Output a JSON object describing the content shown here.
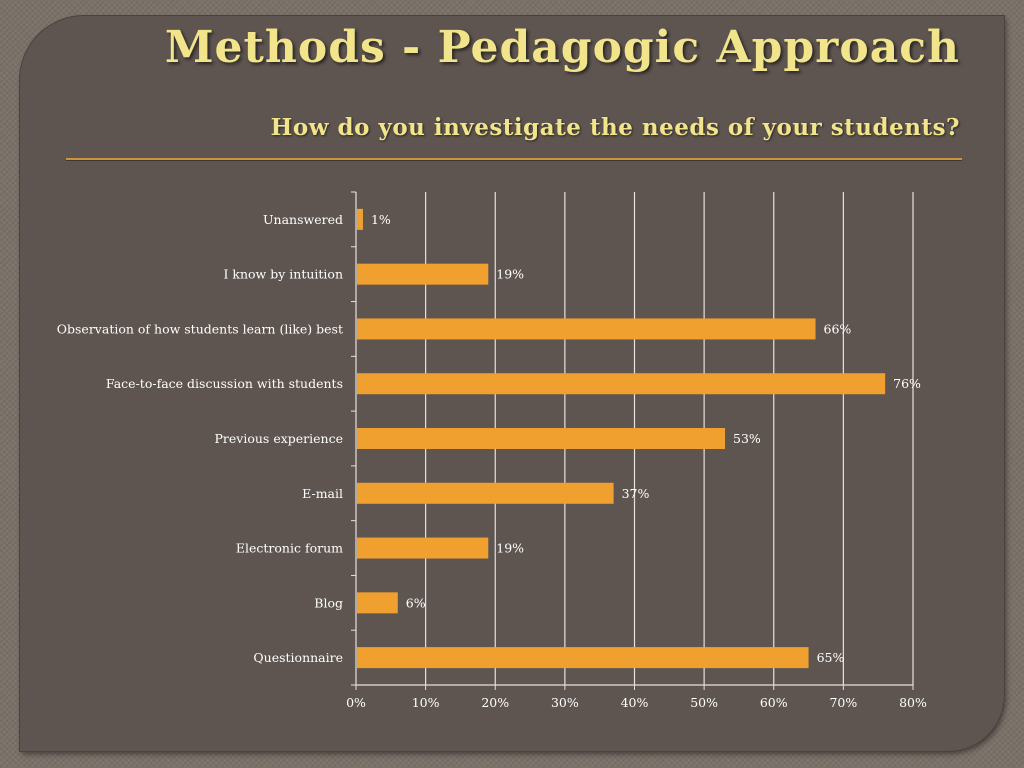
{
  "slide": {
    "title": "Methods - Pedagogic Approach",
    "subtitle": "How do you investigate the needs of your students?"
  },
  "colors": {
    "bar": "#f0a02f",
    "grid": "#e6e1dc",
    "title": "#f1e48a",
    "rule": "#c9943a",
    "panel": "#5e5550"
  },
  "chart_data": {
    "type": "bar",
    "orientation": "horizontal",
    "title": "",
    "xlabel": "",
    "ylabel": "",
    "categories": [
      "Unanswered",
      "I know by intuition",
      "Observation of how students learn (like) best",
      "Face-to-face discussion with students",
      "Previous experience",
      "E-mail",
      "Electronic forum",
      "Blog",
      "Questionnaire"
    ],
    "values": [
      1,
      19,
      66,
      76,
      53,
      37,
      19,
      6,
      65
    ],
    "data_labels": [
      "1%",
      "19%",
      "66%",
      "76%",
      "53%",
      "37%",
      "19%",
      "6%",
      "65%"
    ],
    "xlim": [
      0,
      80
    ],
    "x_ticks": [
      0,
      10,
      20,
      30,
      40,
      50,
      60,
      70,
      80
    ],
    "x_tick_labels": [
      "0%",
      "10%",
      "20%",
      "30%",
      "40%",
      "50%",
      "60%",
      "70%",
      "80%"
    ],
    "grid": true,
    "legend": "none"
  }
}
